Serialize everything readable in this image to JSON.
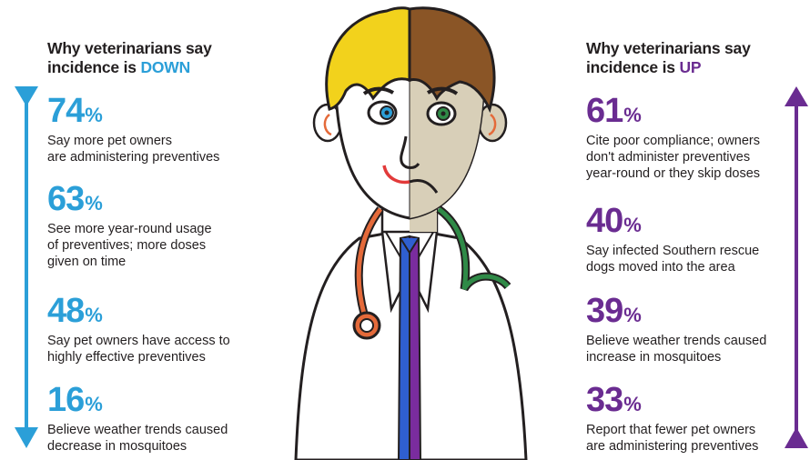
{
  "left": {
    "heading_line1": "Why veterinarians say",
    "heading_line2_prefix": "incidence is ",
    "heading_direction": "DOWN",
    "stats": [
      {
        "percent": "74",
        "sign": "%",
        "lines": [
          "Say more pet owners",
          "are administering preventives"
        ]
      },
      {
        "percent": "63",
        "sign": "%",
        "lines": [
          "See more year-round usage",
          "of preventives; more doses",
          "given on time"
        ]
      },
      {
        "percent": "48",
        "sign": "%",
        "lines": [
          "Say pet owners have access to",
          "highly effective preventives"
        ]
      },
      {
        "percent": "16",
        "sign": "%",
        "lines": [
          "Believe weather trends caused",
          "decrease in mosquitoes"
        ]
      }
    ]
  },
  "right": {
    "heading_line1": "Why veterinarians say",
    "heading_line2_prefix": "incidence is ",
    "heading_direction": "UP",
    "stats": [
      {
        "percent": "61",
        "sign": "%",
        "lines": [
          "Cite poor compliance; owners",
          "don't administer preventives",
          "year-round or they skip doses"
        ]
      },
      {
        "percent": "40",
        "sign": "%",
        "lines": [
          "Say infected Southern rescue",
          "dogs moved into the area"
        ]
      },
      {
        "percent": "39",
        "sign": "%",
        "lines": [
          "Believe weather trends caused",
          "increase in mosquitoes"
        ]
      },
      {
        "percent": "33",
        "sign": "%",
        "lines": [
          "Report that fewer pet owners",
          "are administering preventives"
        ]
      }
    ]
  },
  "colors": {
    "down_accent": "#2b9fd8",
    "up_accent": "#6a2c91",
    "hair_blond": "#f2d21c",
    "hair_brown": "#8a5526",
    "face_light": "#ffffff",
    "face_shaded": "#d8cfb8",
    "tie_blue": "#2f5fd0",
    "tie_purple": "#7a2c9e",
    "stethoscope_orange": "#e46a3a",
    "stethoscope_green": "#2f8a47"
  },
  "icons": [
    "down-arrow-icon",
    "up-arrow-icon",
    "doctor-illustration"
  ]
}
